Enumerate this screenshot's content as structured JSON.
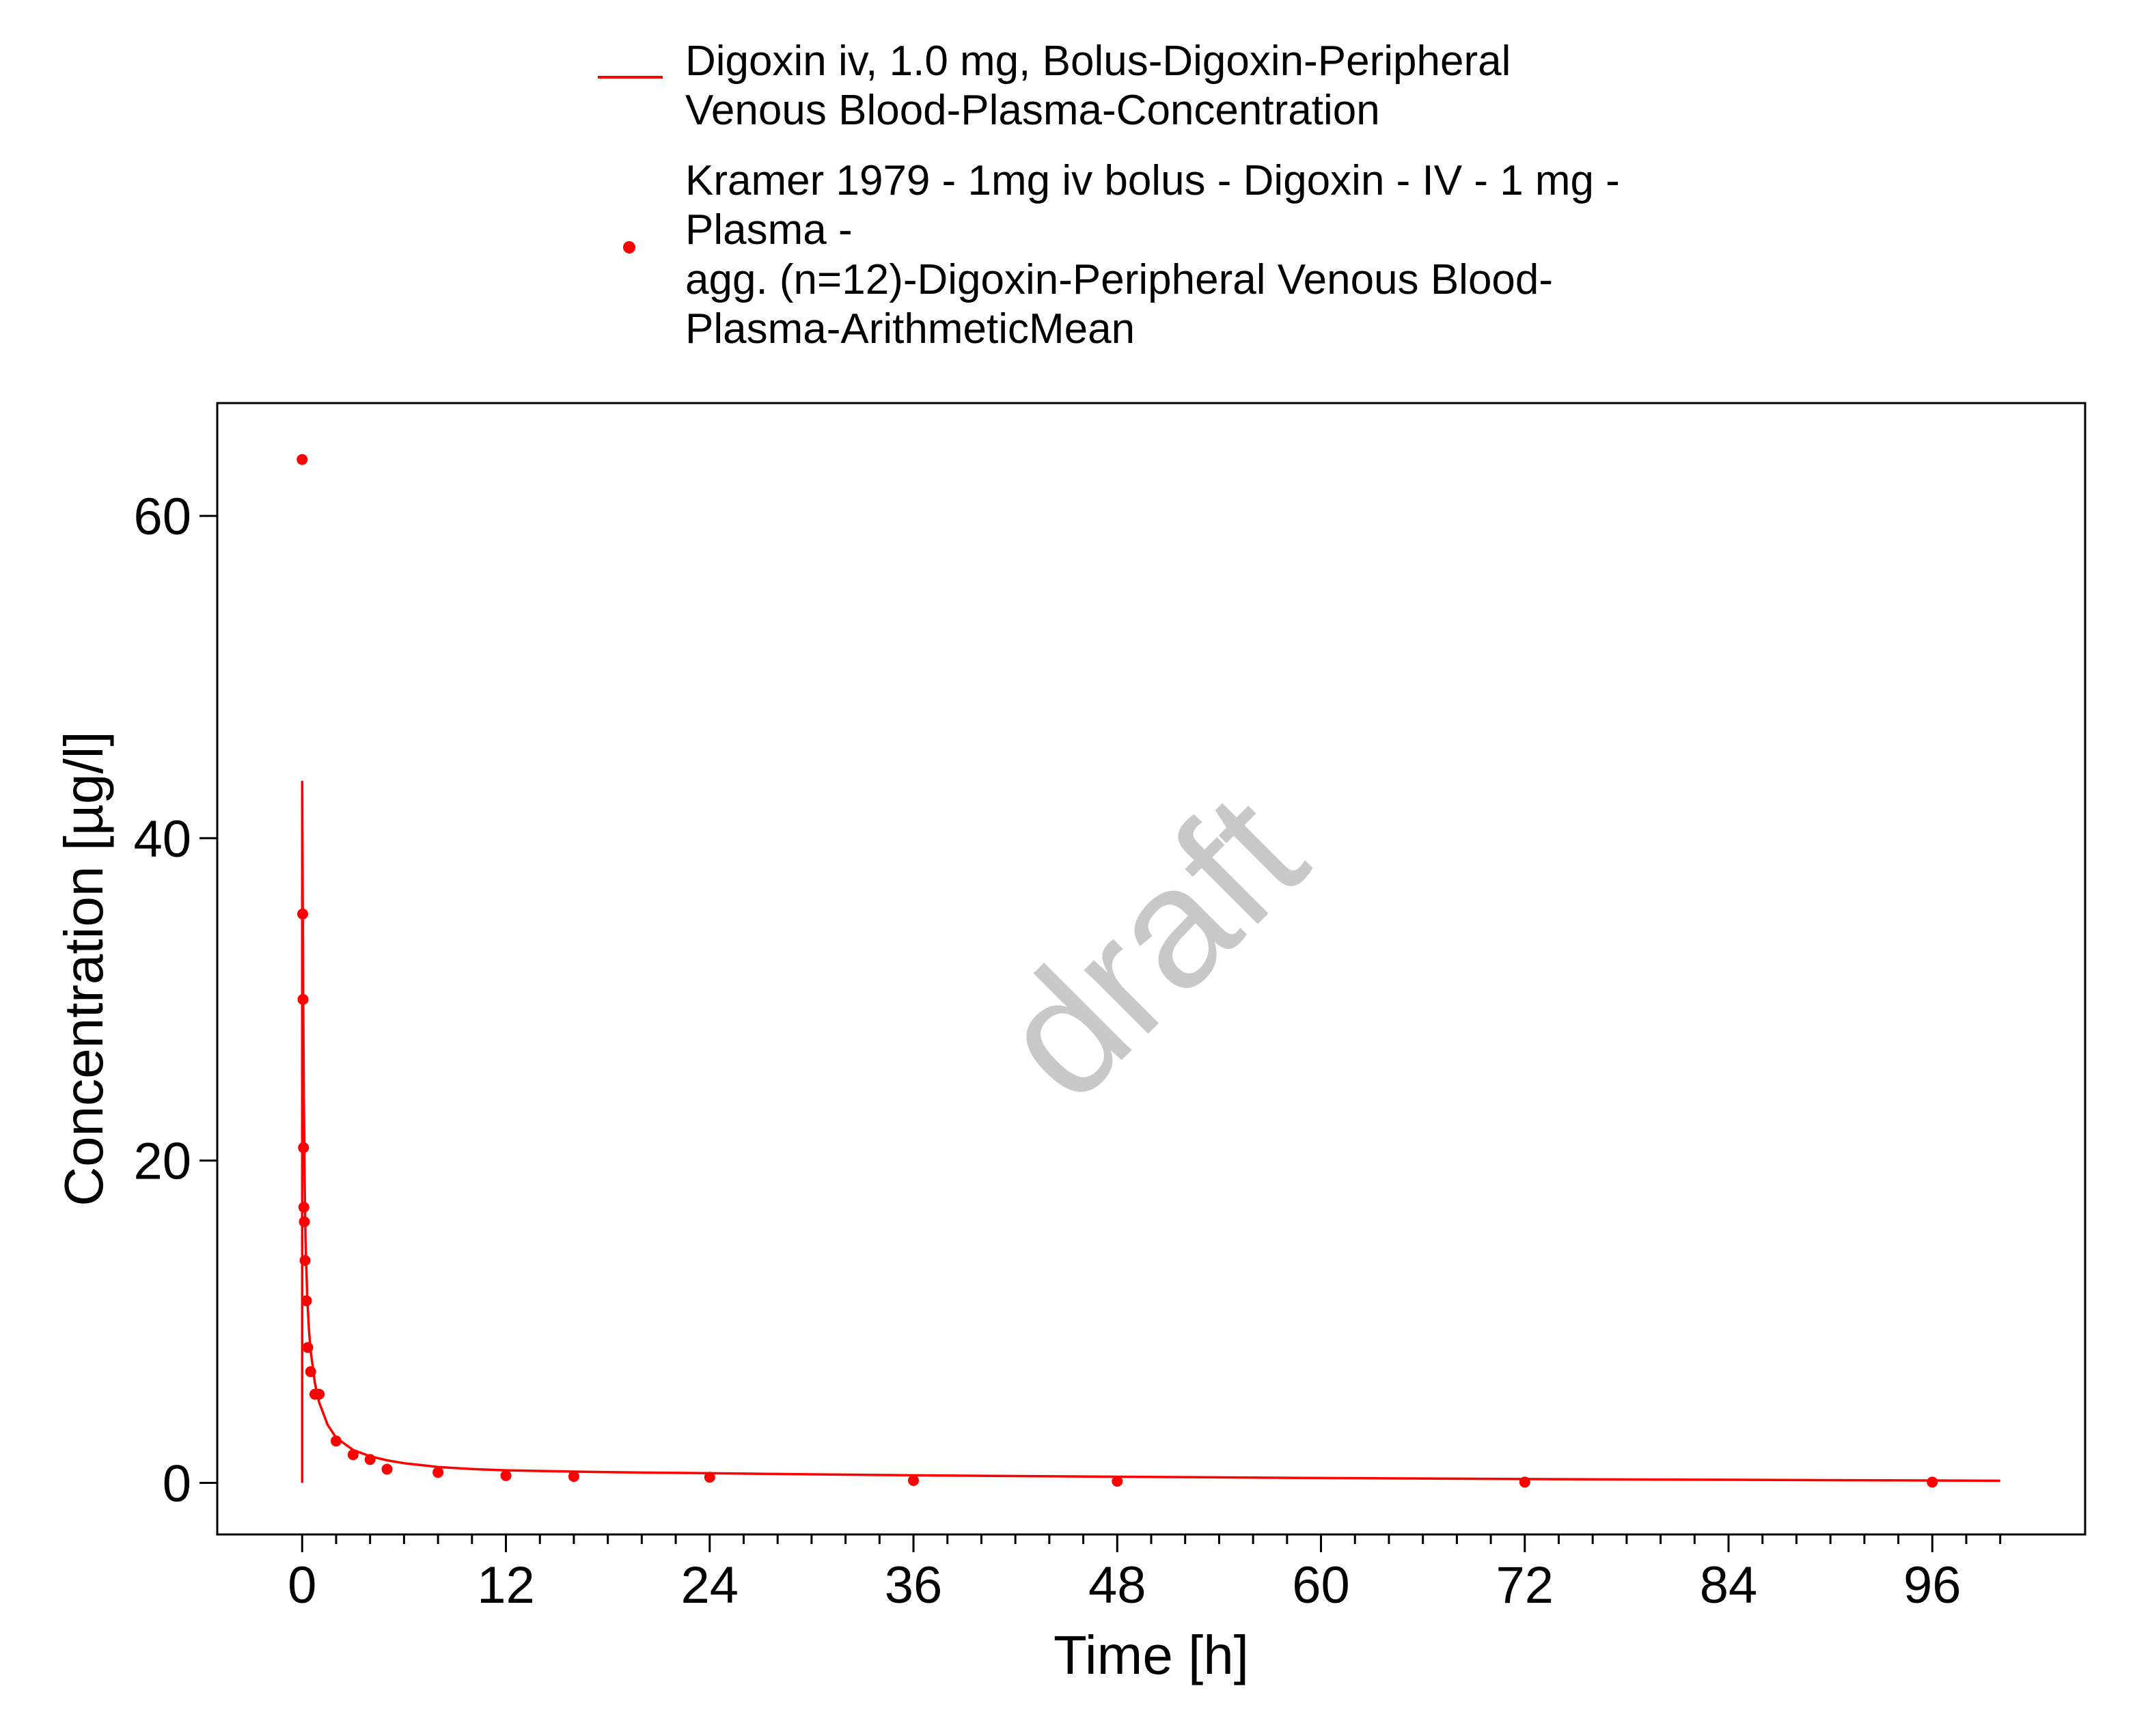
{
  "chart_data": {
    "type": "line",
    "title": "",
    "xlabel": "Time [h]",
    "ylabel": "Concentration [µg/l]",
    "xlim": [
      -5,
      105
    ],
    "ylim": [
      -3.2,
      67
    ],
    "x_ticks": [
      0,
      12,
      24,
      36,
      48,
      60,
      72,
      84,
      96
    ],
    "x_tick_labels": [
      "0",
      "12",
      "24",
      "36",
      "48",
      "60",
      "72",
      "84",
      "96"
    ],
    "x_minor_tick_step": 2,
    "y_ticks": [
      0,
      20,
      40,
      60
    ],
    "y_tick_labels": [
      "0",
      "20",
      "40",
      "60"
    ],
    "grid": false,
    "legend_position": "top-center",
    "watermark": "draft",
    "series": [
      {
        "name": "Digoxin iv, 1.0 mg, Bolus-Digoxin-Peripheral\nVenous Blood-Plasma-Concentration",
        "type": "line",
        "color": "#ff0000",
        "x": [
          0,
          0,
          0.03,
          0.06,
          0.1,
          0.15,
          0.2,
          0.3,
          0.4,
          0.5,
          0.75,
          1,
          1.5,
          2,
          3,
          4,
          5,
          6,
          8,
          10,
          12,
          16,
          20,
          24,
          30,
          36,
          48,
          60,
          72,
          84,
          96,
          100
        ],
        "y": [
          0,
          43.5,
          37,
          30,
          23.5,
          18.5,
          15,
          11.5,
          9.5,
          8.2,
          6.2,
          5,
          3.6,
          2.8,
          2.05,
          1.65,
          1.4,
          1.22,
          0.99,
          0.86,
          0.78,
          0.7,
          0.64,
          0.6,
          0.53,
          0.47,
          0.38,
          0.3,
          0.24,
          0.19,
          0.15,
          0.13
        ]
      },
      {
        "name": "Kramer 1979 - 1mg iv bolus - Digoxin - IV - 1 mg -\nPlasma -\nagg. (n=12)-Digoxin-Peripheral Venous Blood-\nPlasma-ArithmeticMean",
        "type": "scatter",
        "color": "#ff0000",
        "x": [
          0.0,
          0.03,
          0.05,
          0.08,
          0.1,
          0.13,
          0.17,
          0.25,
          0.33,
          0.5,
          0.75,
          1,
          2,
          3,
          4,
          5,
          8,
          12,
          16,
          24,
          36,
          48,
          72,
          96
        ],
        "y": [
          63.5,
          35.3,
          30.0,
          20.8,
          17.1,
          16.2,
          13.8,
          11.3,
          8.4,
          6.9,
          5.5,
          5.5,
          2.6,
          1.75,
          1.45,
          0.85,
          0.65,
          0.45,
          0.4,
          0.35,
          0.15,
          0.1,
          0.05,
          0.05
        ]
      }
    ]
  }
}
